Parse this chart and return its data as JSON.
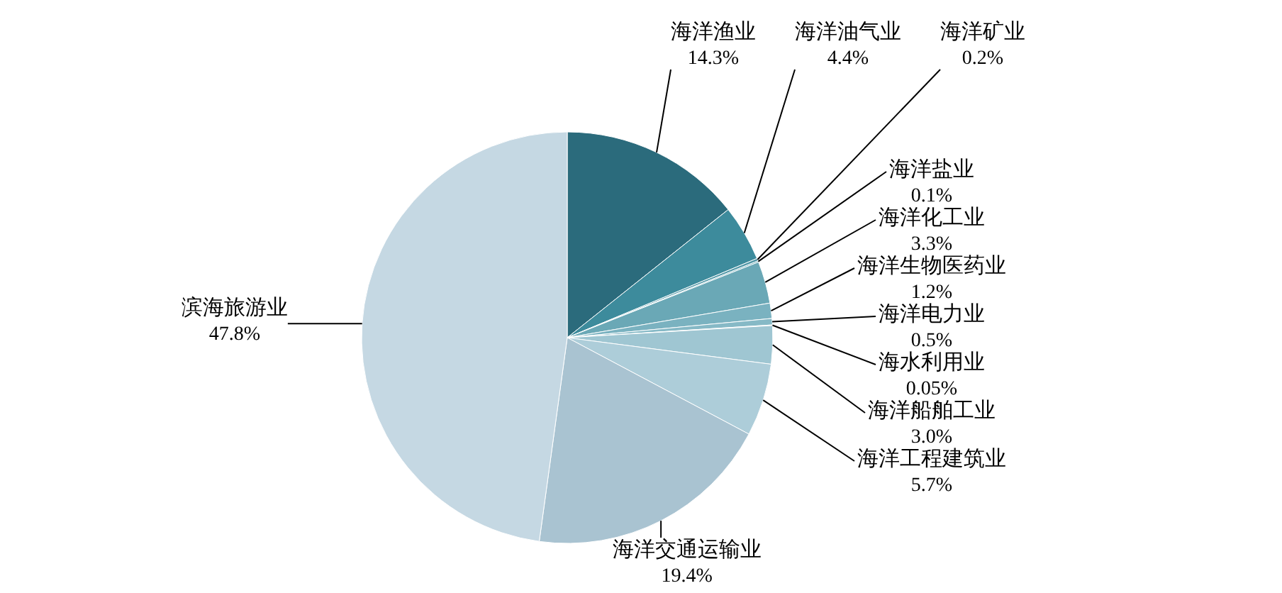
{
  "chart_data": {
    "type": "pie",
    "categories": [
      "海洋渔业",
      "海洋油气业",
      "海洋矿业",
      "海洋盐业",
      "海洋化工业",
      "海洋生物医药业",
      "海洋电力业",
      "海水利用业",
      "海洋船舶工业",
      "海洋工程建筑业",
      "海洋交通运输业",
      "滨海旅游业"
    ],
    "values": [
      14.3,
      4.4,
      0.2,
      0.1,
      3.3,
      1.2,
      0.5,
      0.05,
      3.0,
      5.7,
      19.4,
      47.8
    ],
    "value_labels": [
      "14.3%",
      "4.4%",
      "0.2%",
      "0.1%",
      "3.3%",
      "1.2%",
      "0.5%",
      "0.05%",
      "3.0%",
      "5.7%",
      "19.4%",
      "47.8%"
    ],
    "colors": [
      "#2b6b7c",
      "#3d8b9c",
      "#4f96a6",
      "#5b9fae",
      "#6aa8b6",
      "#7ab2c0",
      "#86b9c6",
      "#92c0cc",
      "#9fc6d2",
      "#adcdd9",
      "#a9c3d1",
      "#c5d8e3"
    ]
  }
}
